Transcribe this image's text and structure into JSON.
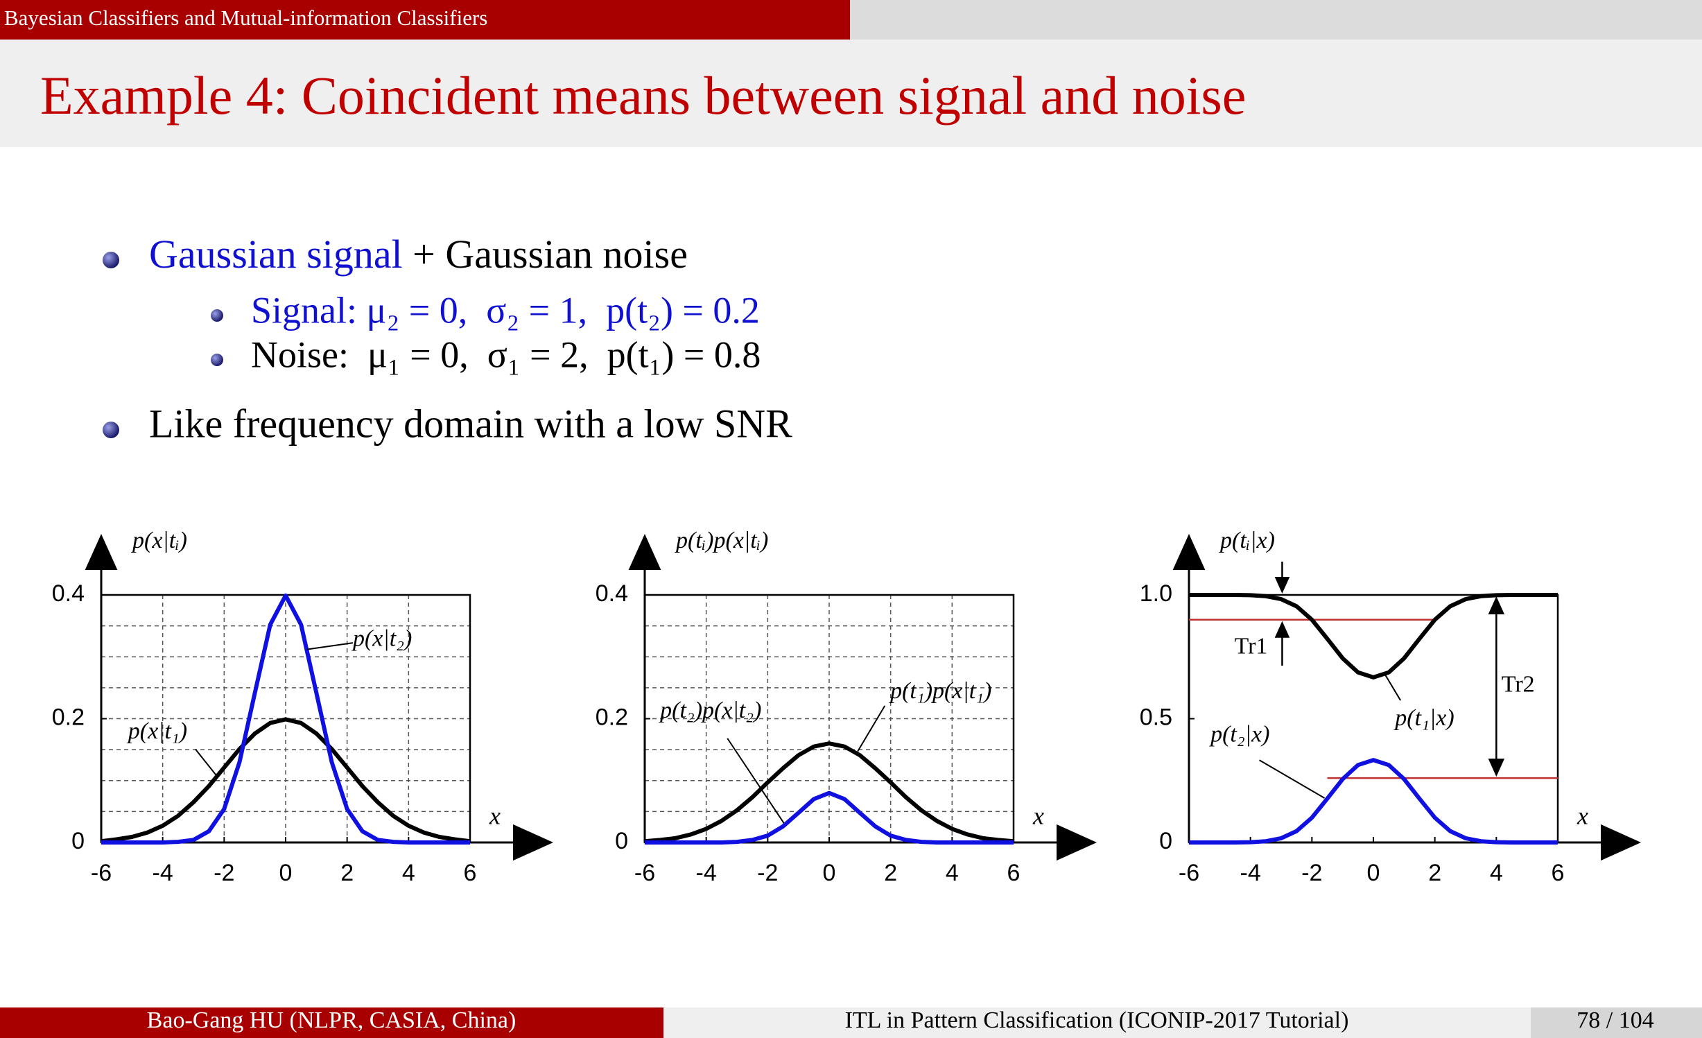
{
  "header": {
    "section": "Bayesian Classifiers and Mutual-information Classifiers"
  },
  "title": "Example 4: Coincident means between signal and noise",
  "bullets": [
    {
      "parts": [
        "Gaussian signal",
        "+ Gaussian noise"
      ],
      "sub": [
        "Signal: μ₂ = 0,  σ₂ = 1,  p(t₂) = 0.2",
        "Noise:  μ₁ = 0,  σ₁ = 2,  p(t₁) = 0.8"
      ]
    },
    {
      "parts": [
        "Like frequency domain with a low SNR"
      ]
    }
  ],
  "chart_data": [
    {
      "type": "line",
      "y_label": "p(x|tᵢ)",
      "x_label": "x",
      "xlim": [
        -6,
        6
      ],
      "ylim": [
        0,
        0.4
      ],
      "xticks": [
        -6,
        -4,
        -2,
        0,
        2,
        4,
        6
      ],
      "yticks": [
        0,
        0.2,
        0.4
      ],
      "grid": true,
      "minor_yticks": [
        0.05,
        0.1,
        0.15,
        0.25,
        0.3,
        0.35
      ],
      "x": [
        -6,
        -5.5,
        -5,
        -4.5,
        -4,
        -3.5,
        -3,
        -2.5,
        -2,
        -1.5,
        -1,
        -0.5,
        0,
        0.5,
        1,
        1.5,
        2,
        2.5,
        3,
        3.5,
        4,
        4.5,
        5,
        5.5,
        6
      ],
      "series": [
        {
          "name": "p(x|t₁)",
          "color": "#000000",
          "values": [
            0.002,
            0.005,
            0.009,
            0.016,
            0.027,
            0.043,
            0.065,
            0.091,
            0.121,
            0.151,
            0.176,
            0.193,
            0.199,
            0.193,
            0.176,
            0.151,
            0.121,
            0.091,
            0.065,
            0.043,
            0.027,
            0.016,
            0.009,
            0.005,
            0.002
          ]
        },
        {
          "name": "p(x|t₂)",
          "color": "#1010e0",
          "values": [
            0,
            0,
            0,
            0,
            0,
            0.001,
            0.004,
            0.018,
            0.054,
            0.13,
            0.242,
            0.352,
            0.399,
            0.352,
            0.242,
            0.13,
            0.054,
            0.018,
            0.004,
            0.001,
            0,
            0,
            0,
            0,
            0
          ]
        }
      ]
    },
    {
      "type": "line",
      "y_label": "p(tᵢ)p(x|tᵢ)",
      "x_label": "x",
      "xlim": [
        -6,
        6
      ],
      "ylim": [
        0,
        0.4
      ],
      "xticks": [
        -6,
        -4,
        -2,
        0,
        2,
        4,
        6
      ],
      "yticks": [
        0,
        0.2,
        0.4
      ],
      "grid": true,
      "minor_yticks": [
        0.05,
        0.1,
        0.15,
        0.25,
        0.3,
        0.35
      ],
      "x": [
        -6,
        -5.5,
        -5,
        -4.5,
        -4,
        -3.5,
        -3,
        -2.5,
        -2,
        -1.5,
        -1,
        -0.5,
        0,
        0.5,
        1,
        1.5,
        2,
        2.5,
        3,
        3.5,
        4,
        4.5,
        5,
        5.5,
        6
      ],
      "series": [
        {
          "name": "p(t₁)p(x|t₁)",
          "color": "#000000",
          "values": [
            0.002,
            0.004,
            0.007,
            0.013,
            0.022,
            0.035,
            0.052,
            0.073,
            0.097,
            0.12,
            0.141,
            0.155,
            0.16,
            0.155,
            0.141,
            0.12,
            0.097,
            0.073,
            0.052,
            0.035,
            0.022,
            0.013,
            0.007,
            0.004,
            0.002
          ]
        },
        {
          "name": "p(t₂)p(x|t₂)",
          "color": "#1010e0",
          "values": [
            0,
            0,
            0,
            0,
            0,
            0,
            0.001,
            0.004,
            0.011,
            0.026,
            0.048,
            0.07,
            0.08,
            0.07,
            0.048,
            0.026,
            0.011,
            0.004,
            0.001,
            0,
            0,
            0,
            0,
            0,
            0
          ]
        }
      ]
    },
    {
      "type": "line",
      "y_label": "p(tᵢ|x)",
      "x_label": "x",
      "xlim": [
        -6,
        6
      ],
      "ylim": [
        0,
        1
      ],
      "xticks": [
        -6,
        -4,
        -2,
        0,
        2,
        4,
        6
      ],
      "yticks": [
        0,
        0.5,
        {
          "value": 1,
          "label": "1.0"
        }
      ],
      "grid": false,
      "x": [
        -6,
        -5.5,
        -5,
        -4.5,
        -4,
        -3.5,
        -3,
        -2.5,
        -2,
        -1.5,
        -1,
        -0.5,
        0,
        0.5,
        1,
        1.5,
        2,
        2.5,
        3,
        3.5,
        4,
        4.5,
        5,
        5.5,
        6
      ],
      "series": [
        {
          "name": "p(t₁|x)",
          "color": "#000000",
          "values": [
            1,
            1,
            1,
            1,
            0.999,
            0.995,
            0.983,
            0.954,
            0.9,
            0.823,
            0.744,
            0.687,
            0.667,
            0.687,
            0.744,
            0.823,
            0.9,
            0.954,
            0.983,
            0.995,
            0.999,
            1,
            1,
            1,
            1
          ]
        },
        {
          "name": "p(t₂|x)",
          "color": "#1010e0",
          "values": [
            0,
            0,
            0,
            0,
            0.001,
            0.005,
            0.017,
            0.046,
            0.1,
            0.177,
            0.256,
            0.313,
            0.333,
            0.313,
            0.256,
            0.177,
            0.1,
            0.046,
            0.017,
            0.005,
            0.001,
            0,
            0,
            0,
            0
          ]
        }
      ],
      "thresholds": [
        {
          "label": "Tr1",
          "value": 0.9,
          "x": [
            -6,
            2
          ]
        },
        {
          "label": "Tr2",
          "value": 0.26,
          "x": [
            -1.5,
            6
          ]
        }
      ]
    }
  ],
  "footer": {
    "author": "Bao-Gang HU (NLPR, CASIA, China)",
    "talk": "ITL in Pattern Classification (ICONIP-2017 Tutorial)",
    "page": "78 / 104"
  }
}
